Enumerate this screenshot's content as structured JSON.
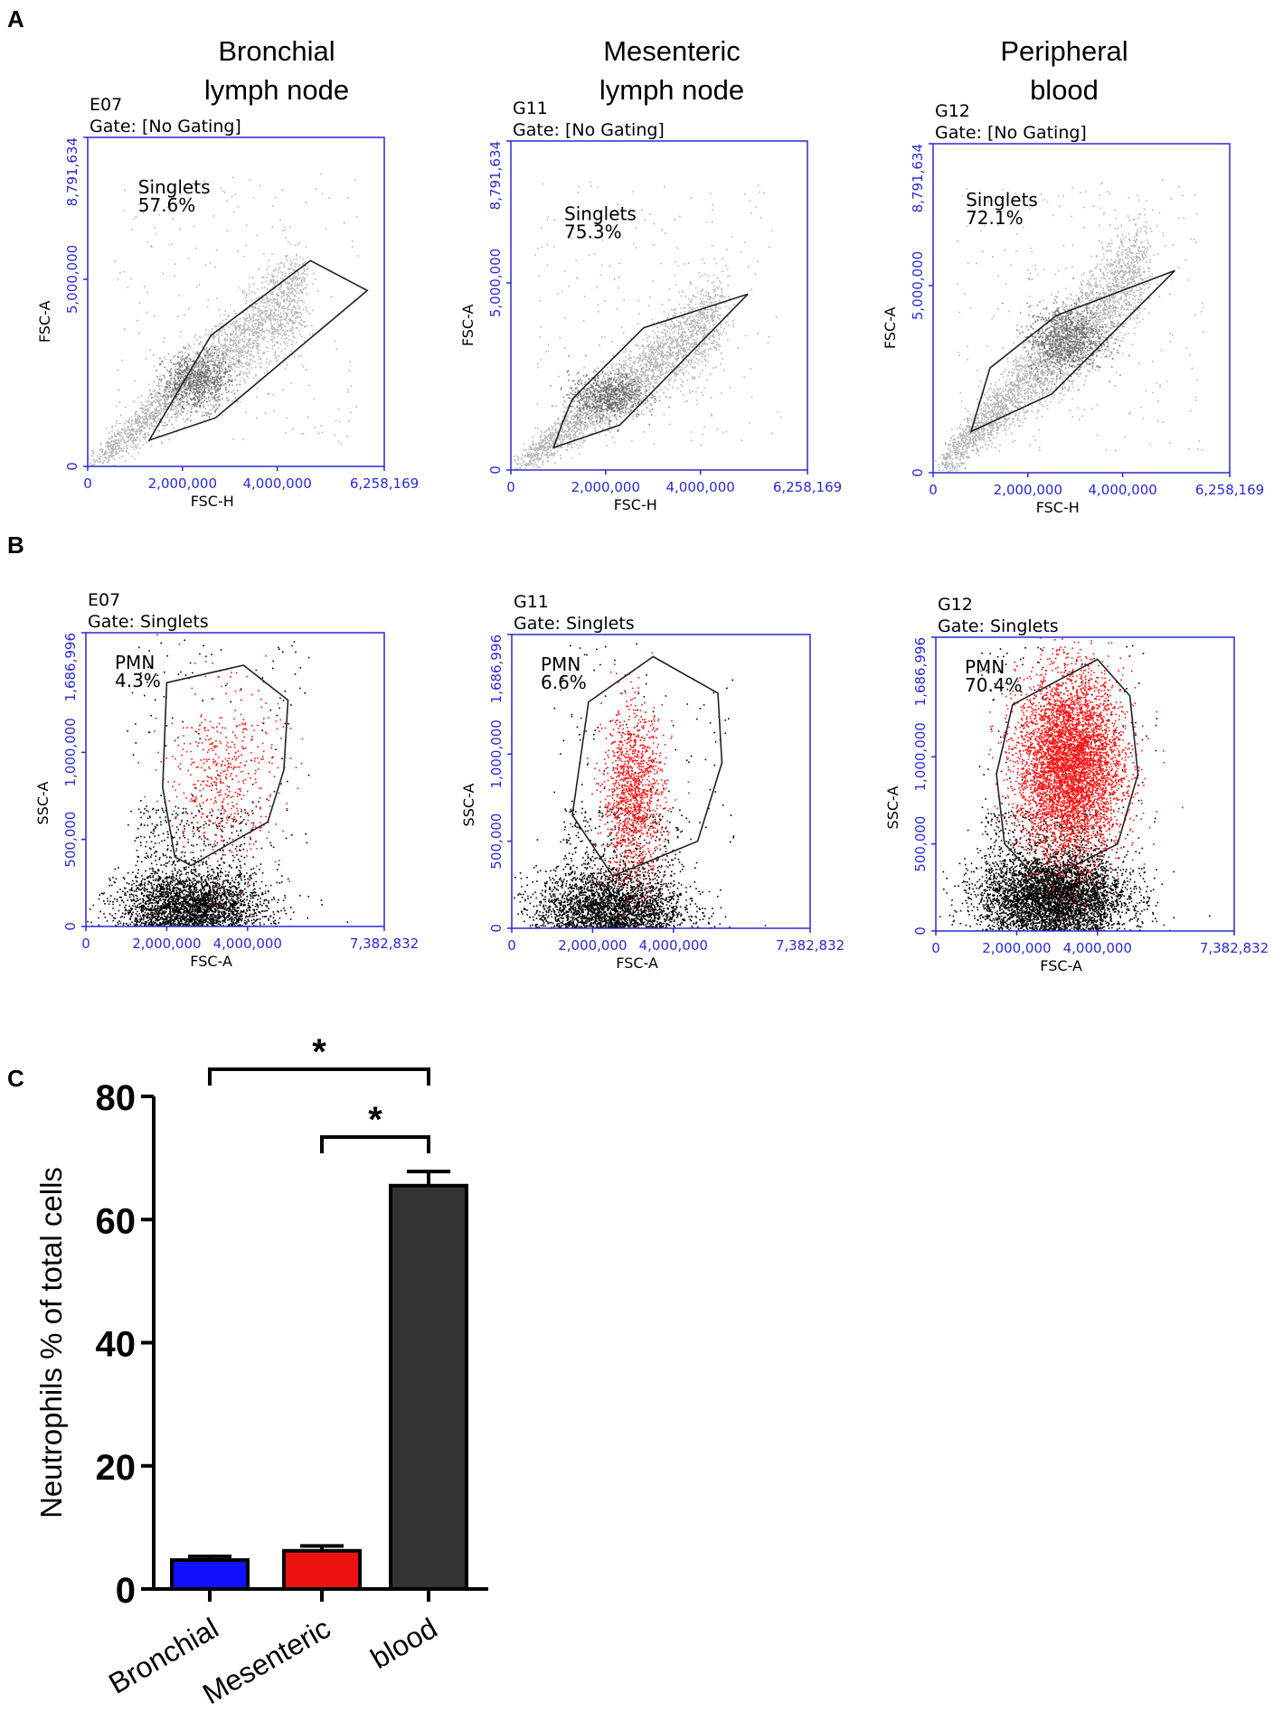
{
  "panel_labels": [
    "A",
    "B",
    "C"
  ],
  "colors": {
    "axis_blue": "#2a2ad0",
    "gray_events": "#9e9e9e",
    "black_events": "#000000",
    "pmn_red": "#ff1010",
    "bar_bronchial": "#1010ff",
    "bar_mesenteric": "#ee1111",
    "bar_blood": "#333333"
  },
  "sample_titles": [
    {
      "line1": "Bronchial",
      "line2": "lymph node"
    },
    {
      "line1": "Mesenteric",
      "line2": "lymph node"
    },
    {
      "line1": "Peripheral",
      "line2": "blood"
    }
  ],
  "chart_data": [
    {
      "type": "scatter",
      "panel": "A",
      "sample": "E07",
      "gate": "Gate: [No Gating]",
      "xlabel": "FSC-H",
      "ylabel": "FSC-A",
      "xlim": [
        0,
        6258169
      ],
      "ylim": [
        0,
        8791634
      ],
      "xticks": [
        "0",
        "2,000,000",
        "4,000,000",
        "6,258,169"
      ],
      "xtick_values": [
        0,
        2000000,
        4000000,
        6258169
      ],
      "yticks": [
        "0",
        "5,000,000",
        "8,791,634"
      ],
      "ytick_values": [
        0,
        5000000,
        8791634
      ],
      "gate_name": "Singlets",
      "gate_percent": "57.6%",
      "gate_polygon": [
        [
          1300000,
          700000
        ],
        [
          2700000,
          1300000
        ],
        [
          5900000,
          4700000
        ],
        [
          4700000,
          5500000
        ],
        [
          2600000,
          3500000
        ]
      ]
    },
    {
      "type": "scatter",
      "panel": "A",
      "sample": "G11",
      "gate": "Gate: [No Gating]",
      "xlabel": "FSC-H",
      "ylabel": "FSC-A",
      "xlim": [
        0,
        6258169
      ],
      "ylim": [
        0,
        8791634
      ],
      "xticks": [
        "0",
        "2,000,000",
        "4,000,000",
        "6,258,169"
      ],
      "xtick_values": [
        0,
        2000000,
        4000000,
        6258169
      ],
      "yticks": [
        "0",
        "5,000,000",
        "8,791,634"
      ],
      "ytick_values": [
        0,
        5000000,
        8791634
      ],
      "gate_name": "Singlets",
      "gate_percent": "75.3%",
      "gate_polygon": [
        [
          900000,
          600000
        ],
        [
          2300000,
          1200000
        ],
        [
          5000000,
          4700000
        ],
        [
          2800000,
          3800000
        ],
        [
          1300000,
          1900000
        ],
        [
          1100000,
          1300000
        ]
      ]
    },
    {
      "type": "scatter",
      "panel": "A",
      "sample": "G12",
      "gate": "Gate: [No Gating]",
      "xlabel": "FSC-H",
      "ylabel": "FSC-A",
      "xlim": [
        0,
        6258169
      ],
      "ylim": [
        0,
        8791634
      ],
      "xticks": [
        "0",
        "2,000,000",
        "4,000,000",
        "6,258,169"
      ],
      "xtick_values": [
        0,
        2000000,
        4000000,
        6258169
      ],
      "yticks": [
        "0",
        "5,000,000",
        "8,791,634"
      ],
      "ytick_values": [
        0,
        5000000,
        8791634
      ],
      "gate_name": "Singlets",
      "gate_percent": "72.1%",
      "gate_polygon": [
        [
          800000,
          1100000
        ],
        [
          2500000,
          2100000
        ],
        [
          5100000,
          5400000
        ],
        [
          2600000,
          4200000
        ],
        [
          1200000,
          2800000
        ]
      ]
    },
    {
      "type": "scatter",
      "panel": "B",
      "sample": "E07",
      "gate": "Gate: Singlets",
      "xlabel": "FSC-A",
      "ylabel": "SSC-A",
      "xlim": [
        0,
        7382832
      ],
      "ylim": [
        0,
        1686996
      ],
      "xticks": [
        "0",
        "2,000,000",
        "4,000,000",
        "7,382,832"
      ],
      "xtick_values": [
        0,
        2000000,
        4000000,
        7382832
      ],
      "yticks": [
        "0",
        "500,000",
        "1,000,000",
        "1,686,996"
      ],
      "ytick_values": [
        0,
        500000,
        1000000,
        1686996
      ],
      "gate_name": "PMN",
      "gate_percent": "4.3%",
      "gate_polygon": [
        [
          2000000,
          1400000
        ],
        [
          3900000,
          1500000
        ],
        [
          5000000,
          1300000
        ],
        [
          4900000,
          900000
        ],
        [
          4500000,
          600000
        ],
        [
          2600000,
          350000
        ],
        [
          2200000,
          400000
        ],
        [
          1900000,
          800000
        ]
      ]
    },
    {
      "type": "scatter",
      "panel": "B",
      "sample": "G11",
      "gate": "Gate: Singlets",
      "xlabel": "FSC-A",
      "ylabel": "SSC-A",
      "xlim": [
        0,
        7382832
      ],
      "ylim": [
        0,
        1686996
      ],
      "xticks": [
        "0",
        "2,000,000",
        "4,000,000",
        "7,382,832"
      ],
      "xtick_values": [
        0,
        2000000,
        4000000,
        7382832
      ],
      "yticks": [
        "0",
        "500,000",
        "1,000,000",
        "1,686,996"
      ],
      "ytick_values": [
        0,
        500000,
        1000000,
        1686996
      ],
      "gate_name": "PMN",
      "gate_percent": "6.6%",
      "gate_polygon": [
        [
          1900000,
          1300000
        ],
        [
          3500000,
          1560000
        ],
        [
          5100000,
          1350000
        ],
        [
          5200000,
          950000
        ],
        [
          4600000,
          500000
        ],
        [
          2500000,
          300000
        ],
        [
          1500000,
          650000
        ]
      ]
    },
    {
      "type": "scatter",
      "panel": "B",
      "sample": "G12",
      "gate": "Gate: Singlets",
      "xlabel": "FSC-A",
      "ylabel": "SSC-A",
      "xlim": [
        0,
        7382832
      ],
      "ylim": [
        0,
        1686996
      ],
      "xticks": [
        "0",
        "2,000,000",
        "4,000,000",
        "7,382,832"
      ],
      "xtick_values": [
        0,
        2000000,
        4000000,
        7382832
      ],
      "yticks": [
        "0",
        "500,000",
        "1,000,000",
        "1,686,996"
      ],
      "ytick_values": [
        0,
        500000,
        1000000,
        1686996
      ],
      "gate_name": "PMN",
      "gate_percent": "70.4%",
      "gate_polygon": [
        [
          1900000,
          1300000
        ],
        [
          4000000,
          1560000
        ],
        [
          4800000,
          1350000
        ],
        [
          5000000,
          900000
        ],
        [
          4500000,
          500000
        ],
        [
          2600000,
          280000
        ],
        [
          1700000,
          500000
        ],
        [
          1500000,
          900000
        ]
      ]
    },
    {
      "type": "bar",
      "panel": "C",
      "categories": [
        "Bronchial",
        "Mesenteric",
        "blood"
      ],
      "values": [
        4.7,
        6.2,
        65.5
      ],
      "errors": [
        0.6,
        0.8,
        2.3
      ],
      "ylabel": "Neutrophils % of total cells",
      "ylim": [
        0,
        80
      ],
      "yticks": [
        "0",
        "20",
        "40",
        "60",
        "80"
      ],
      "ytick_values": [
        0,
        20,
        40,
        60,
        80
      ],
      "significance": [
        {
          "from": "Bronchial",
          "to": "blood",
          "label": "*"
        },
        {
          "from": "Mesenteric",
          "to": "blood",
          "label": "*"
        }
      ]
    }
  ]
}
